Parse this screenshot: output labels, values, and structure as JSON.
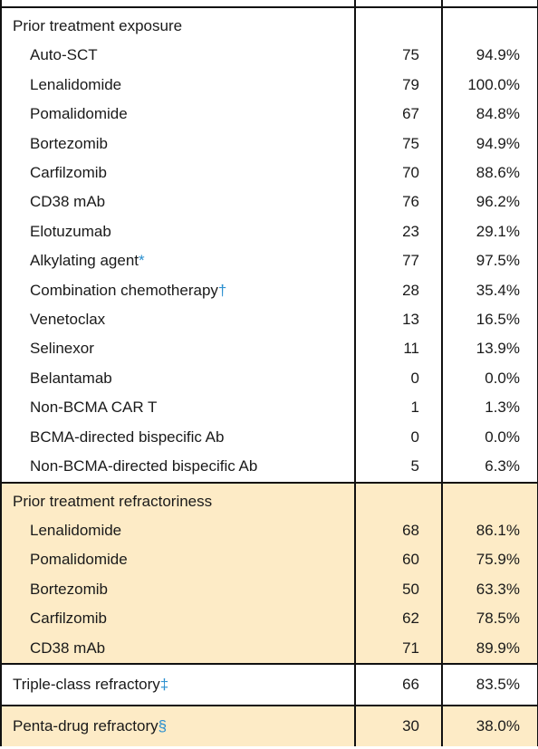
{
  "exposure": {
    "title": "Prior treatment exposure",
    "rows": [
      {
        "label": "Auto-SCT",
        "mark": "",
        "n": "75",
        "pct": "94.9%"
      },
      {
        "label": "Lenalidomide",
        "mark": "",
        "n": "79",
        "pct": "100.0%"
      },
      {
        "label": "Pomalidomide",
        "mark": "",
        "n": "67",
        "pct": "84.8%"
      },
      {
        "label": "Bortezomib",
        "mark": "",
        "n": "75",
        "pct": "94.9%"
      },
      {
        "label": "Carfilzomib",
        "mark": "",
        "n": "70",
        "pct": "88.6%"
      },
      {
        "label": "CD38 mAb",
        "mark": "",
        "n": "76",
        "pct": "96.2%"
      },
      {
        "label": "Elotuzumab",
        "mark": "",
        "n": "23",
        "pct": "29.1%"
      },
      {
        "label": "Alkylating agent",
        "mark": "*",
        "n": "77",
        "pct": "97.5%"
      },
      {
        "label": "Combination chemotherapy",
        "mark": "†",
        "n": "28",
        "pct": "35.4%"
      },
      {
        "label": "Venetoclax",
        "mark": "",
        "n": "13",
        "pct": "16.5%"
      },
      {
        "label": "Selinexor",
        "mark": "",
        "n": "11",
        "pct": "13.9%"
      },
      {
        "label": "Belantamab",
        "mark": "",
        "n": "0",
        "pct": "0.0%"
      },
      {
        "label": "Non-BCMA CAR T",
        "mark": "",
        "n": "1",
        "pct": "1.3%"
      },
      {
        "label": "BCMA-directed bispecific Ab",
        "mark": "",
        "n": "0",
        "pct": "0.0%"
      },
      {
        "label": "Non-BCMA-directed bispecific Ab",
        "mark": "",
        "n": "5",
        "pct": "6.3%"
      }
    ]
  },
  "refractoriness": {
    "title": "Prior treatment refractoriness",
    "rows": [
      {
        "label": "Lenalidomide",
        "mark": "",
        "n": "68",
        "pct": "86.1%"
      },
      {
        "label": "Pomalidomide",
        "mark": "",
        "n": "60",
        "pct": "75.9%"
      },
      {
        "label": "Bortezomib",
        "mark": "",
        "n": "50",
        "pct": "63.3%"
      },
      {
        "label": "Carfilzomib",
        "mark": "",
        "n": "62",
        "pct": "78.5%"
      },
      {
        "label": "CD38 mAb",
        "mark": "",
        "n": "71",
        "pct": "89.9%"
      }
    ]
  },
  "triple": {
    "label": "Triple-class refractory",
    "mark": "‡",
    "n": "66",
    "pct": "83.5%"
  },
  "penta": {
    "label": "Penta-drug refractory",
    "mark": "§",
    "n": "30",
    "pct": "38.0%"
  }
}
